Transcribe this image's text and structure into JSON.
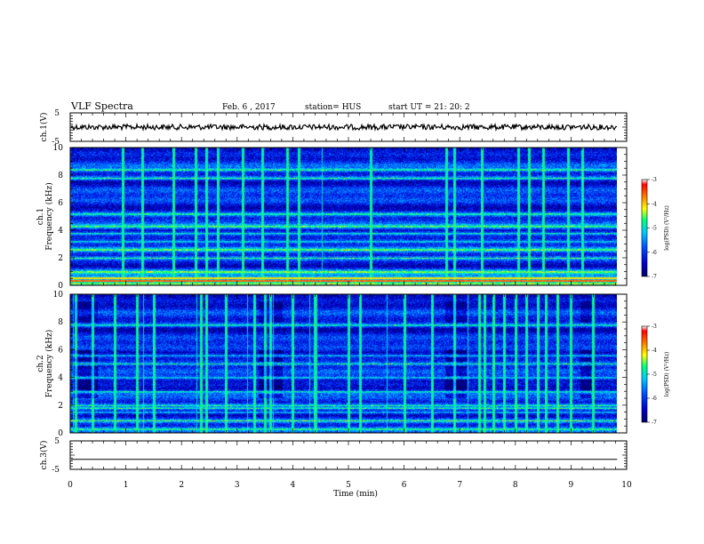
{
  "header": {
    "title": "VLF Spectra",
    "date": "Feb. 6  , 2017",
    "station": "station= HUS",
    "start": "start  UT  =    21: 20: 2"
  },
  "colors": {
    "colormap": [
      "#000066",
      "#0000cc",
      "#0050ff",
      "#00c8ff",
      "#00ff80",
      "#ffff00",
      "#ff8000",
      "#ff0000",
      "#ffffff"
    ],
    "trace": "#000000"
  },
  "chart_data": [
    {
      "type": "line",
      "panel": "ch1-waveform",
      "ylabel": "ch.1(V)",
      "ylim": [
        -5,
        5
      ],
      "yticks": [
        "5",
        "-5"
      ],
      "series": [
        {
          "values_mean": 0,
          "values_amplitude_approx": 0.6
        }
      ],
      "xlim": [
        0,
        10
      ]
    },
    {
      "type": "heatmap",
      "panel": "ch1-spectrogram",
      "ylabel": "ch.1\nFrequency  (kHz)",
      "ylabel_line1": "ch.1",
      "ylabel_line2": "Frequency  (kHz)",
      "xlim": [
        0,
        10
      ],
      "ylim": [
        0,
        10
      ],
      "yticks": [
        "0",
        "2",
        "4",
        "6",
        "8",
        "10"
      ],
      "data_end_min": 9.83,
      "colorbar": {
        "label": "log(PSD) (V²/Hz)",
        "ticks": [
          "-3",
          "-4",
          "-5",
          "-6",
          "-7"
        ],
        "range": [
          -7,
          -3
        ]
      },
      "persistent_lines_khz": [
        0.15,
        0.35,
        0.55,
        1.0,
        2.0,
        2.6,
        3.2,
        3.8,
        4.3,
        5.2,
        7.8,
        8.4
      ],
      "impulsive_bursts_min": [
        0.95,
        1.3,
        1.85,
        2.25,
        2.45,
        2.65,
        3.1,
        3.45,
        3.9,
        4.1,
        5.4,
        6.75,
        6.9,
        7.4,
        8.05,
        8.25,
        8.5,
        8.95,
        9.2
      ]
    },
    {
      "type": "heatmap",
      "panel": "ch2-spectrogram",
      "ylabel": "ch.2\nFrequency  (kHz)",
      "ylabel_line1": "ch.2",
      "ylabel_line2": "Frequency  (kHz)",
      "xlim": [
        0,
        10
      ],
      "ylim": [
        0,
        10
      ],
      "yticks": [
        "0",
        "2",
        "4",
        "6",
        "8",
        "10"
      ],
      "data_end_min": 9.83,
      "colorbar": {
        "label": "log(PSD) (V²/Hz)",
        "ticks": [
          "-3",
          "-4",
          "-5",
          "-6",
          "-7"
        ],
        "range": [
          -7,
          -3
        ]
      },
      "persistent_lines_khz": [
        0.3,
        0.9,
        1.5,
        1.8,
        2.0,
        3.0,
        4.0,
        5.0,
        5.6,
        7.8
      ],
      "impulsive_bursts_min": [
        0.1,
        0.4,
        0.8,
        1.2,
        1.5,
        2.35,
        2.45,
        2.8,
        3.3,
        3.5,
        3.6,
        4.0,
        4.4,
        5.0,
        5.2,
        6.0,
        6.5,
        6.9,
        7.35,
        7.45,
        7.6,
        7.8,
        8.0,
        8.2,
        8.4,
        8.55,
        8.75,
        9.0,
        9.4
      ]
    },
    {
      "type": "line",
      "panel": "ch3-waveform",
      "ylabel": "ch.3(V)",
      "ylim": [
        -5,
        5
      ],
      "yticks": [
        "5",
        "-5"
      ],
      "series": [
        {
          "values_mean": -1.5,
          "values_amplitude_approx": 0
        }
      ],
      "xlim": [
        0,
        10
      ]
    }
  ],
  "xaxis": {
    "label": "Time  (min)",
    "ticks": [
      "0",
      "1",
      "2",
      "3",
      "4",
      "5",
      "6",
      "7",
      "8",
      "9",
      "10"
    ],
    "range": [
      0,
      10
    ]
  }
}
